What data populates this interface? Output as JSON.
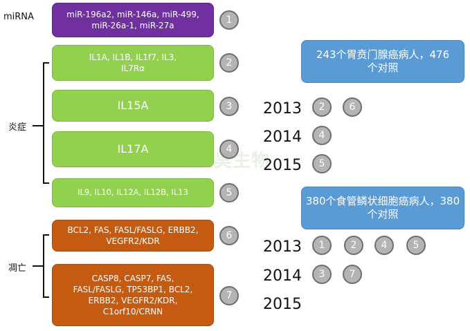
{
  "labels": {
    "mirna": "miRNA",
    "inflammation": "炎症",
    "apoptosis": "凋亡"
  },
  "boxes": {
    "mirna": {
      "text": "miR-196a2, miR-146a, miR-499, miR-26a-1, miR-27a",
      "badge": "1"
    },
    "il1": {
      "text": "IL1A, IL1B, IL1f7, IL3, IL7Rα",
      "badge": "2"
    },
    "il15": {
      "text": "IL15A",
      "badge": "3"
    },
    "il17": {
      "text": "IL17A",
      "badge": "4"
    },
    "il9": {
      "text": "IL9, IL10, IL12A, IL12B, IL13",
      "badge": "5"
    },
    "bcl2": {
      "text": "BCL2, FAS, FASL/FASLG, ERBB2, VEGFR2/KDR",
      "badge": "6"
    },
    "casp8": {
      "text": "CASP8, CASP7, FAS, FASL/FASLG, TP53BP1, BCL2, ERBB2, VEGFR2/KDR, C1orf10/CRNN",
      "badge": "7"
    }
  },
  "study1": {
    "title": "243个胃贲门腺癌病人，476个对照",
    "rows": [
      {
        "year": "2013",
        "badges": [
          "2",
          "6"
        ]
      },
      {
        "year": "2014",
        "badges": [
          "4"
        ]
      },
      {
        "year": "2015",
        "badges": [
          "5"
        ]
      }
    ]
  },
  "study2": {
    "title": "380个食管鳞状细胞癌病人，380个对照",
    "rows": [
      {
        "year": "2013",
        "badges": [
          "1",
          "2",
          "4",
          "5"
        ]
      },
      {
        "year": "2014",
        "badges": [
          "3",
          "7"
        ]
      },
      {
        "year": "2015",
        "badges": []
      }
    ]
  },
  "watermark": "天昊生物",
  "colors": {
    "mirna": "#7030a0",
    "inflammation": "#92d050",
    "apoptosis": "#c55a11",
    "study": "#5b9bd5",
    "badge": "#b4b4b4"
  }
}
